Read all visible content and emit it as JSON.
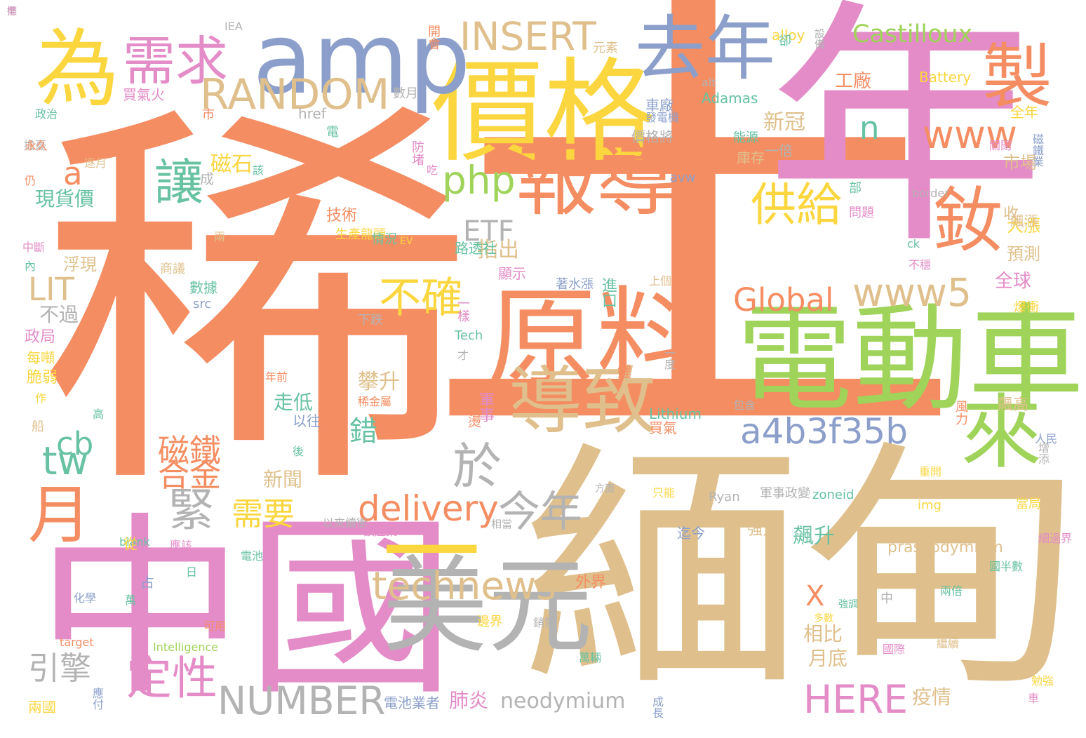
{
  "palette": {
    "orange": "#f58d62",
    "tan": "#dfc08c",
    "pink": "#e38cc7",
    "green": "#9fd35a",
    "yellow": "#fbd63f",
    "blue": "#8c9fca",
    "gray": "#b3b3b3",
    "teal": "#67c2a2"
  },
  "words": [
    {
      "text": "稀",
      "color": "orange"
    },
    {
      "text": "土",
      "color": "orange"
    },
    {
      "text": "年",
      "color": "pink"
    },
    {
      "text": "緬甸",
      "color": "tan"
    },
    {
      "text": "中國",
      "color": "pink"
    },
    {
      "text": "電動車",
      "color": "green"
    },
    {
      "text": "價格",
      "color": "yellow"
    },
    {
      "text": "原料",
      "color": "orange"
    },
    {
      "text": "美元",
      "color": "gray"
    },
    {
      "text": "amp",
      "color": "blue"
    },
    {
      "text": "為",
      "color": "yellow"
    },
    {
      "text": "一",
      "color": "yellow"
    },
    {
      "text": "報導",
      "color": "orange"
    },
    {
      "text": "來",
      "color": "green"
    },
    {
      "text": "去年",
      "color": "blue"
    },
    {
      "text": "製",
      "color": "orange"
    },
    {
      "text": "導致",
      "color": "tan"
    },
    {
      "text": "釹",
      "color": "orange"
    },
    {
      "text": "需求",
      "color": "pink"
    },
    {
      "text": "technews",
      "color": "tan"
    },
    {
      "text": "www",
      "color": "orange"
    },
    {
      "text": "www5",
      "color": "tan"
    },
    {
      "text": "a4b3f35b",
      "color": "blue"
    },
    {
      "text": "RANDOM",
      "color": "tan"
    },
    {
      "text": "INSERT",
      "color": "tan"
    },
    {
      "text": "今年",
      "color": "gray"
    },
    {
      "text": "供給",
      "color": "yellow"
    },
    {
      "text": "delivery",
      "color": "orange"
    },
    {
      "text": "NUMBER",
      "color": "gray"
    },
    {
      "text": "月",
      "color": "orange"
    },
    {
      "text": "不確",
      "color": "yellow"
    },
    {
      "text": "於",
      "color": "gray"
    },
    {
      "text": "Global",
      "color": "orange"
    },
    {
      "text": "讓",
      "color": "teal"
    },
    {
      "text": "緊",
      "color": "gray"
    },
    {
      "text": "tw",
      "color": "teal"
    },
    {
      "text": "php",
      "color": "green"
    },
    {
      "text": "定性",
      "color": "pink"
    },
    {
      "text": "HERE",
      "color": "pink"
    },
    {
      "text": "Castilloux",
      "color": "green"
    },
    {
      "text": "磁鐵",
      "color": "orange"
    },
    {
      "text": "合金",
      "color": "orange"
    },
    {
      "text": "需要",
      "color": "yellow"
    },
    {
      "text": "引擎",
      "color": "gray"
    },
    {
      "text": "cb",
      "color": "teal"
    },
    {
      "text": "a",
      "color": "orange"
    },
    {
      "text": "n",
      "color": "teal"
    },
    {
      "text": "ETF",
      "color": "gray"
    },
    {
      "text": "LIT",
      "color": "tan"
    },
    {
      "text": "neodymium",
      "color": "gray"
    },
    {
      "text": "X",
      "color": "orange"
    },
    {
      "text": "飆升",
      "color": "teal"
    },
    {
      "text": "錯",
      "color": "teal"
    },
    {
      "text": "磁石",
      "color": "yellow"
    },
    {
      "text": "新冠",
      "color": "tan"
    },
    {
      "text": "攀升",
      "color": "tan"
    },
    {
      "text": "指出",
      "color": "tan"
    },
    {
      "text": "全球",
      "color": "pink"
    },
    {
      "text": "praseodymium",
      "color": "tan"
    },
    {
      "text": "月底",
      "color": "tan"
    },
    {
      "text": "疫情",
      "color": "tan"
    },
    {
      "text": "肺炎",
      "color": "pink"
    },
    {
      "text": "電池業者",
      "color": "blue"
    },
    {
      "text": "相比",
      "color": "tan"
    },
    {
      "text": "新聞",
      "color": "tan"
    },
    {
      "text": "走低",
      "color": "teal"
    },
    {
      "text": "現貨價",
      "color": "teal"
    },
    {
      "text": "浮現",
      "color": "tan"
    },
    {
      "text": "不過",
      "color": "gray"
    },
    {
      "text": "大漲",
      "color": "yellow"
    },
    {
      "text": "預測",
      "color": "tan"
    },
    {
      "text": "市場",
      "color": "tan"
    },
    {
      "text": "全年",
      "color": "yellow"
    },
    {
      "text": "工廠",
      "color": "orange"
    },
    {
      "text": "車廠",
      "color": "blue"
    },
    {
      "text": "價格將",
      "color": "gray"
    },
    {
      "text": "庫存",
      "color": "tan"
    },
    {
      "text": "一倍",
      "color": "gray"
    },
    {
      "text": "能源",
      "color": "teal"
    },
    {
      "text": "路透社",
      "color": "teal"
    },
    {
      "text": "技術",
      "color": "orange"
    },
    {
      "text": "外界",
      "color": "orange"
    },
    {
      "text": "飆高",
      "color": "tan"
    },
    {
      "text": "迄今",
      "color": "blue"
    },
    {
      "text": "強力",
      "color": "tan"
    },
    {
      "text": "IEA",
      "color": "gray"
    },
    {
      "text": "開會",
      "color": "orange"
    },
    {
      "text": "元素",
      "color": "tan"
    },
    {
      "text": "alloy",
      "color": "yellow"
    },
    {
      "text": "設備",
      "color": "gray"
    },
    {
      "text": "卻",
      "color": "teal"
    },
    {
      "text": "買氣火",
      "color": "pink"
    },
    {
      "text": "數月",
      "color": "gray"
    },
    {
      "text": "Battery",
      "color": "yellow"
    },
    {
      "text": "Adamas",
      "color": "teal"
    },
    {
      "text": "alt",
      "color": "gray"
    },
    {
      "text": "href",
      "color": "gray"
    },
    {
      "text": "政治",
      "color": "teal"
    },
    {
      "text": "市",
      "color": "orange"
    },
    {
      "text": "發電機",
      "color": "blue"
    },
    {
      "text": "電",
      "color": "teal"
    },
    {
      "text": "擔憂",
      "color": "gray"
    },
    {
      "text": "防堵",
      "color": "pink"
    },
    {
      "text": "吃",
      "color": "pink"
    },
    {
      "text": "仍",
      "color": "orange"
    },
    {
      "text": "逐月",
      "color": "tan"
    },
    {
      "text": "該",
      "color": "teal"
    },
    {
      "text": "成",
      "color": "gray"
    },
    {
      "text": "avw",
      "color": "blue"
    },
    {
      "text": "收",
      "color": "tan"
    },
    {
      "text": "border",
      "color": "gray"
    },
    {
      "text": "部",
      "color": "teal"
    },
    {
      "text": "問題",
      "color": "pink"
    },
    {
      "text": "飆漲",
      "color": "tan"
    },
    {
      "text": "ck",
      "color": "teal"
    },
    {
      "text": "不穩",
      "color": "pink"
    },
    {
      "text": "磁鐵業",
      "color": "blue"
    },
    {
      "text": "關閉",
      "color": "pink"
    },
    {
      "text": "兩",
      "color": "tan"
    },
    {
      "text": "生產龍頭",
      "color": "yellow"
    },
    {
      "text": "情況",
      "color": "teal"
    },
    {
      "text": "EV",
      "color": "yellow"
    },
    {
      "text": "中斷",
      "color": "pink"
    },
    {
      "text": "內",
      "color": "teal"
    },
    {
      "text": "商議",
      "color": "tan"
    },
    {
      "text": "數據",
      "color": "teal"
    },
    {
      "text": "src",
      "color": "blue"
    },
    {
      "text": "上個",
      "color": "tan"
    },
    {
      "text": "顯示",
      "color": "pink"
    },
    {
      "text": "著水漲",
      "color": "blue"
    },
    {
      "text": "進口",
      "color": "teal"
    },
    {
      "text": "爆衝",
      "color": "yellow"
    },
    {
      "text": "下跌",
      "color": "gray"
    },
    {
      "text": "一樣",
      "color": "pink"
    },
    {
      "text": "政局",
      "color": "pink"
    },
    {
      "text": "Tech",
      "color": "teal"
    },
    {
      "text": "每噸",
      "color": "yellow"
    },
    {
      "text": "才",
      "color": "gray"
    },
    {
      "text": "脆弱",
      "color": "yellow"
    },
    {
      "text": "鋰",
      "color": "orange"
    },
    {
      "text": "一度",
      "color": "gray"
    },
    {
      "text": "年前",
      "color": "orange"
    },
    {
      "text": "稀金屬",
      "color": "orange"
    },
    {
      "text": "軍事",
      "color": "pink"
    },
    {
      "text": "包含",
      "color": "gray"
    },
    {
      "text": "高",
      "color": "teal"
    },
    {
      "text": "風力",
      "color": "orange"
    },
    {
      "text": "以往",
      "color": "blue"
    },
    {
      "text": "船",
      "color": "tan"
    },
    {
      "text": "燙",
      "color": "orange"
    },
    {
      "text": "買氣",
      "color": "orange"
    },
    {
      "text": "後",
      "color": "teal"
    },
    {
      "text": "人民",
      "color": "blue"
    },
    {
      "text": "增添",
      "color": "gray"
    },
    {
      "text": "重開",
      "color": "yellow"
    },
    {
      "text": "方面",
      "color": "gray"
    },
    {
      "text": "只能",
      "color": "yellow"
    },
    {
      "text": "Ryan",
      "color": "gray"
    },
    {
      "text": "軍事政變",
      "color": "gray"
    },
    {
      "text": "zoneid",
      "color": "teal"
    },
    {
      "text": "當局",
      "color": "yellow"
    },
    {
      "text": "img",
      "color": "yellow"
    },
    {
      "text": "blank",
      "color": "teal"
    },
    {
      "text": "以來續衝",
      "color": "gray"
    },
    {
      "text": "該產業",
      "color": "pink"
    },
    {
      "text": "相當",
      "color": "gray"
    },
    {
      "text": "從",
      "color": "yellow"
    },
    {
      "text": "應該",
      "color": "pink"
    },
    {
      "text": "電池",
      "color": "teal"
    },
    {
      "text": "細過界",
      "color": "pink"
    },
    {
      "text": "國半數",
      "color": "teal"
    },
    {
      "text": "日",
      "color": "teal"
    },
    {
      "text": "占",
      "color": "blue"
    },
    {
      "text": "化學",
      "color": "blue"
    },
    {
      "text": "萬",
      "color": "teal"
    },
    {
      "text": "可用",
      "color": "orange"
    },
    {
      "text": "強調",
      "color": "teal"
    },
    {
      "text": "多數",
      "color": "yellow"
    },
    {
      "text": "中",
      "color": "gray"
    },
    {
      "text": "兩倍",
      "color": "teal"
    },
    {
      "text": "邊界",
      "color": "yellow"
    },
    {
      "text": "銷售",
      "color": "gray"
    },
    {
      "text": "target",
      "color": "orange"
    },
    {
      "text": "Intelligence",
      "color": "green"
    },
    {
      "text": "國際",
      "color": "pink"
    },
    {
      "text": "繼續",
      "color": "tan"
    },
    {
      "text": "萬輛",
      "color": "teal"
    },
    {
      "text": "勉強",
      "color": "yellow"
    },
    {
      "text": "車",
      "color": "pink"
    },
    {
      "text": "應付",
      "color": "blue"
    },
    {
      "text": "兩國",
      "color": "yellow"
    },
    {
      "text": "成長",
      "color": "blue"
    },
    {
      "text": "Lithium",
      "color": "teal"
    },
    {
      "text": "永久",
      "color": "orange"
    },
    {
      "text": "作",
      "color": "yellow"
    },
    {
      "text": "攤",
      "color": "gray"
    },
    {
      "text": "幣",
      "color": "pink"
    }
  ]
}
